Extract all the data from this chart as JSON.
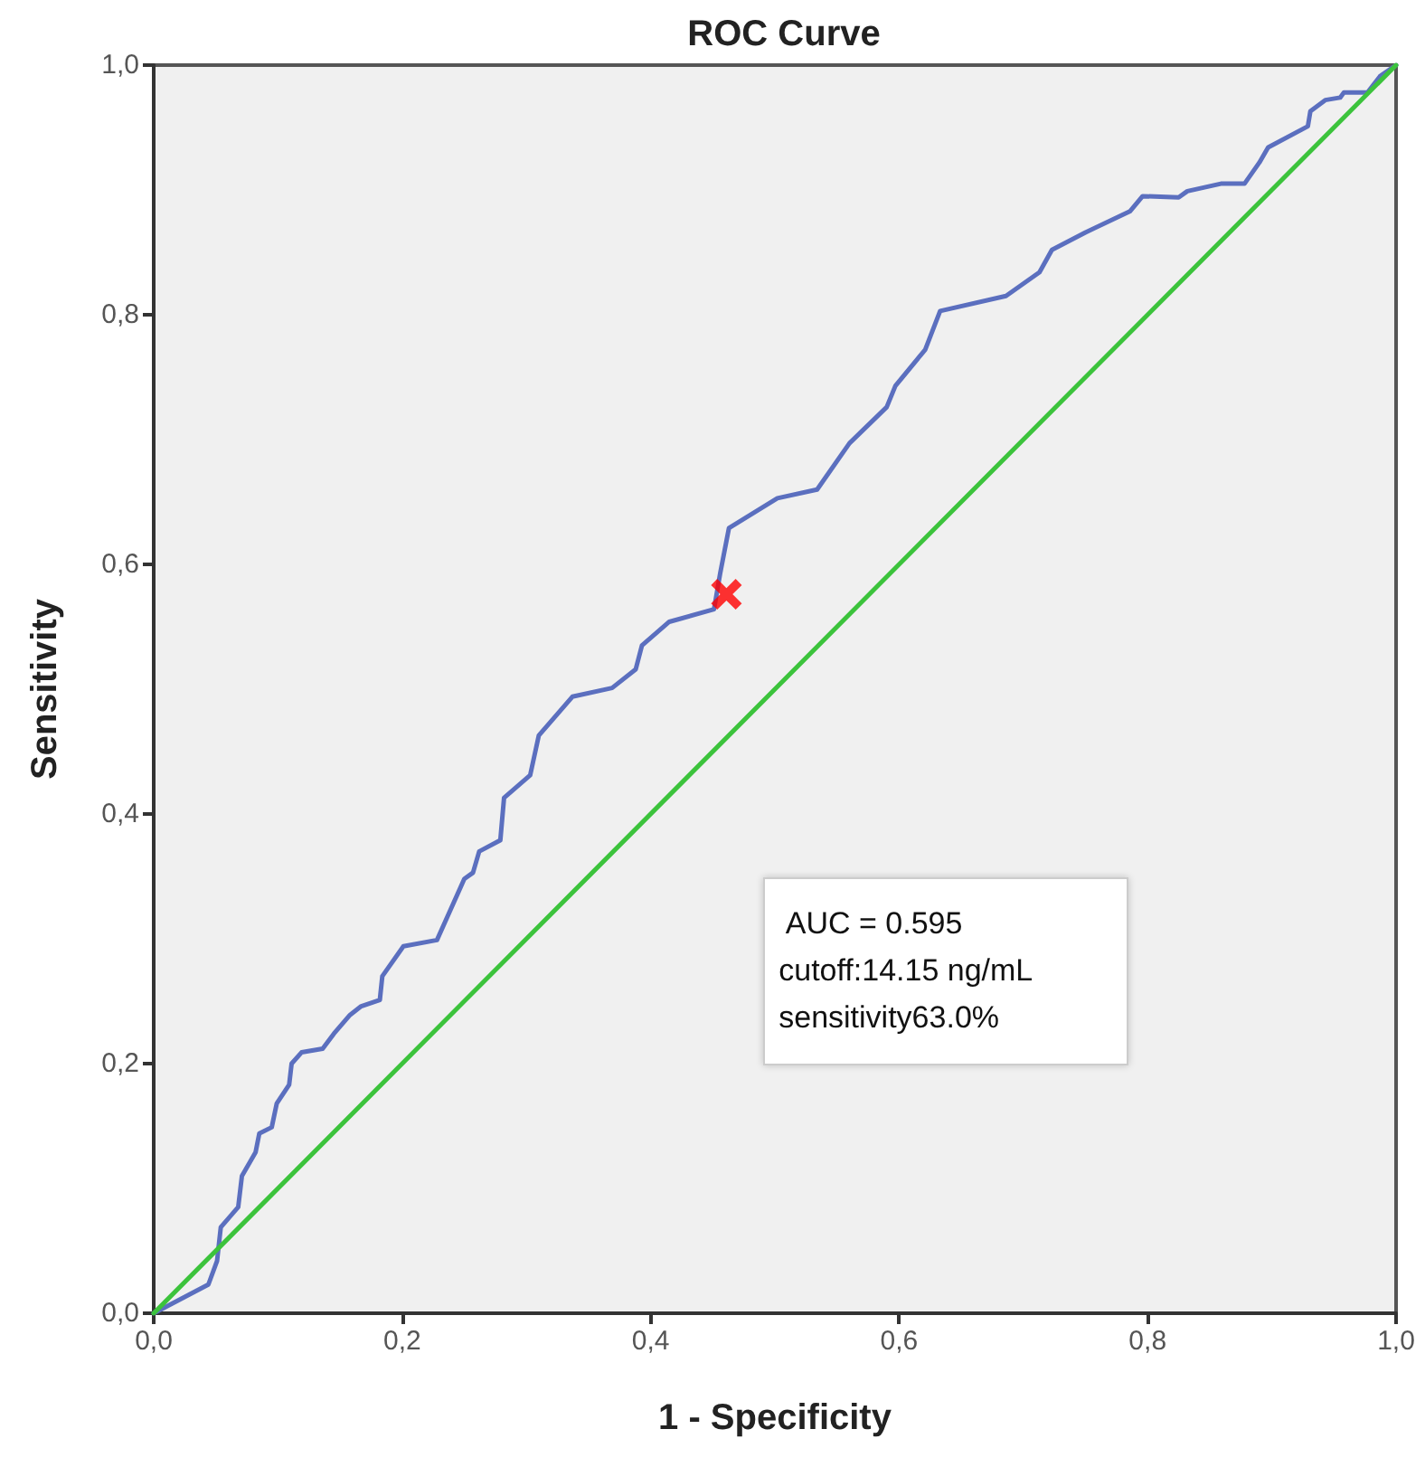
{
  "chart_data": {
    "type": "line",
    "title": "ROC Curve",
    "xlabel": "1 - Specificity",
    "ylabel": "Sensitivity",
    "xlim": [
      0,
      1
    ],
    "ylim": [
      0,
      1
    ],
    "xticks": [
      {
        "value": 0,
        "label": "0,0"
      },
      {
        "value": 0.2,
        "label": "0,2"
      },
      {
        "value": 0.4,
        "label": "0,4"
      },
      {
        "value": 0.6,
        "label": "0,6"
      },
      {
        "value": 0.8,
        "label": "0,8"
      },
      {
        "value": 1,
        "label": "1,0"
      }
    ],
    "yticks": [
      {
        "value": 0,
        "label": "0,0"
      },
      {
        "value": 0.2,
        "label": "0,2"
      },
      {
        "value": 0.4,
        "label": "0,4"
      },
      {
        "value": 0.6,
        "label": "0,6"
      },
      {
        "value": 0.8,
        "label": "0,8"
      },
      {
        "value": 1,
        "label": "1,0"
      }
    ],
    "grid": false,
    "marker": "none",
    "line_style": "solid",
    "series": [
      {
        "color": "#5b6fbf",
        "x": [
          0,
          0.044,
          0.051,
          0.054,
          0.068,
          0.071,
          0.082,
          0.085,
          0.095,
          0.099,
          0.109,
          0.111,
          0.119,
          0.136,
          0.145,
          0.158,
          0.167,
          0.182,
          0.184,
          0.201,
          0.228,
          0.25,
          0.257,
          0.262,
          0.279,
          0.282,
          0.303,
          0.31,
          0.337,
          0.369,
          0.388,
          0.393,
          0.415,
          0.451,
          0.456,
          0.463,
          0.502,
          0.534,
          0.56,
          0.59,
          0.597,
          0.621,
          0.633,
          0.686,
          0.713,
          0.723,
          0.75,
          0.786,
          0.796,
          0.825,
          0.832,
          0.859,
          0.878,
          0.89,
          0.897,
          0.929,
          0.931,
          0.943,
          0.955,
          0.958,
          0.977,
          0.987,
          1
        ],
        "values": [
          0,
          0.023,
          0.042,
          0.069,
          0.085,
          0.11,
          0.129,
          0.144,
          0.149,
          0.168,
          0.183,
          0.2,
          0.209,
          0.212,
          0.224,
          0.239,
          0.246,
          0.251,
          0.27,
          0.294,
          0.299,
          0.348,
          0.353,
          0.37,
          0.379,
          0.413,
          0.431,
          0.463,
          0.494,
          0.501,
          0.516,
          0.535,
          0.554,
          0.564,
          0.593,
          0.629,
          0.653,
          0.66,
          0.697,
          0.726,
          0.743,
          0.772,
          0.803,
          0.815,
          0.834,
          0.852,
          0.866,
          0.883,
          0.895,
          0.894,
          0.899,
          0.905,
          0.905,
          0.922,
          0.934,
          0.951,
          0.963,
          0.972,
          0.974,
          0.978,
          0.978,
          0.991,
          1
        ]
      },
      {
        "type": "line",
        "color": "#3cc33c",
        "x": [
          0,
          1
        ],
        "values": [
          0,
          1
        ]
      },
      {
        "type": "scatter",
        "color": "#ff0000",
        "marker": "cross",
        "x": [
          0.461
        ],
        "values": [
          0.576
        ]
      }
    ],
    "annotations": [
      " AUC = 0.595",
      "cutoff:14.15 ng/mL",
      "sensitivity63.0%"
    ]
  }
}
